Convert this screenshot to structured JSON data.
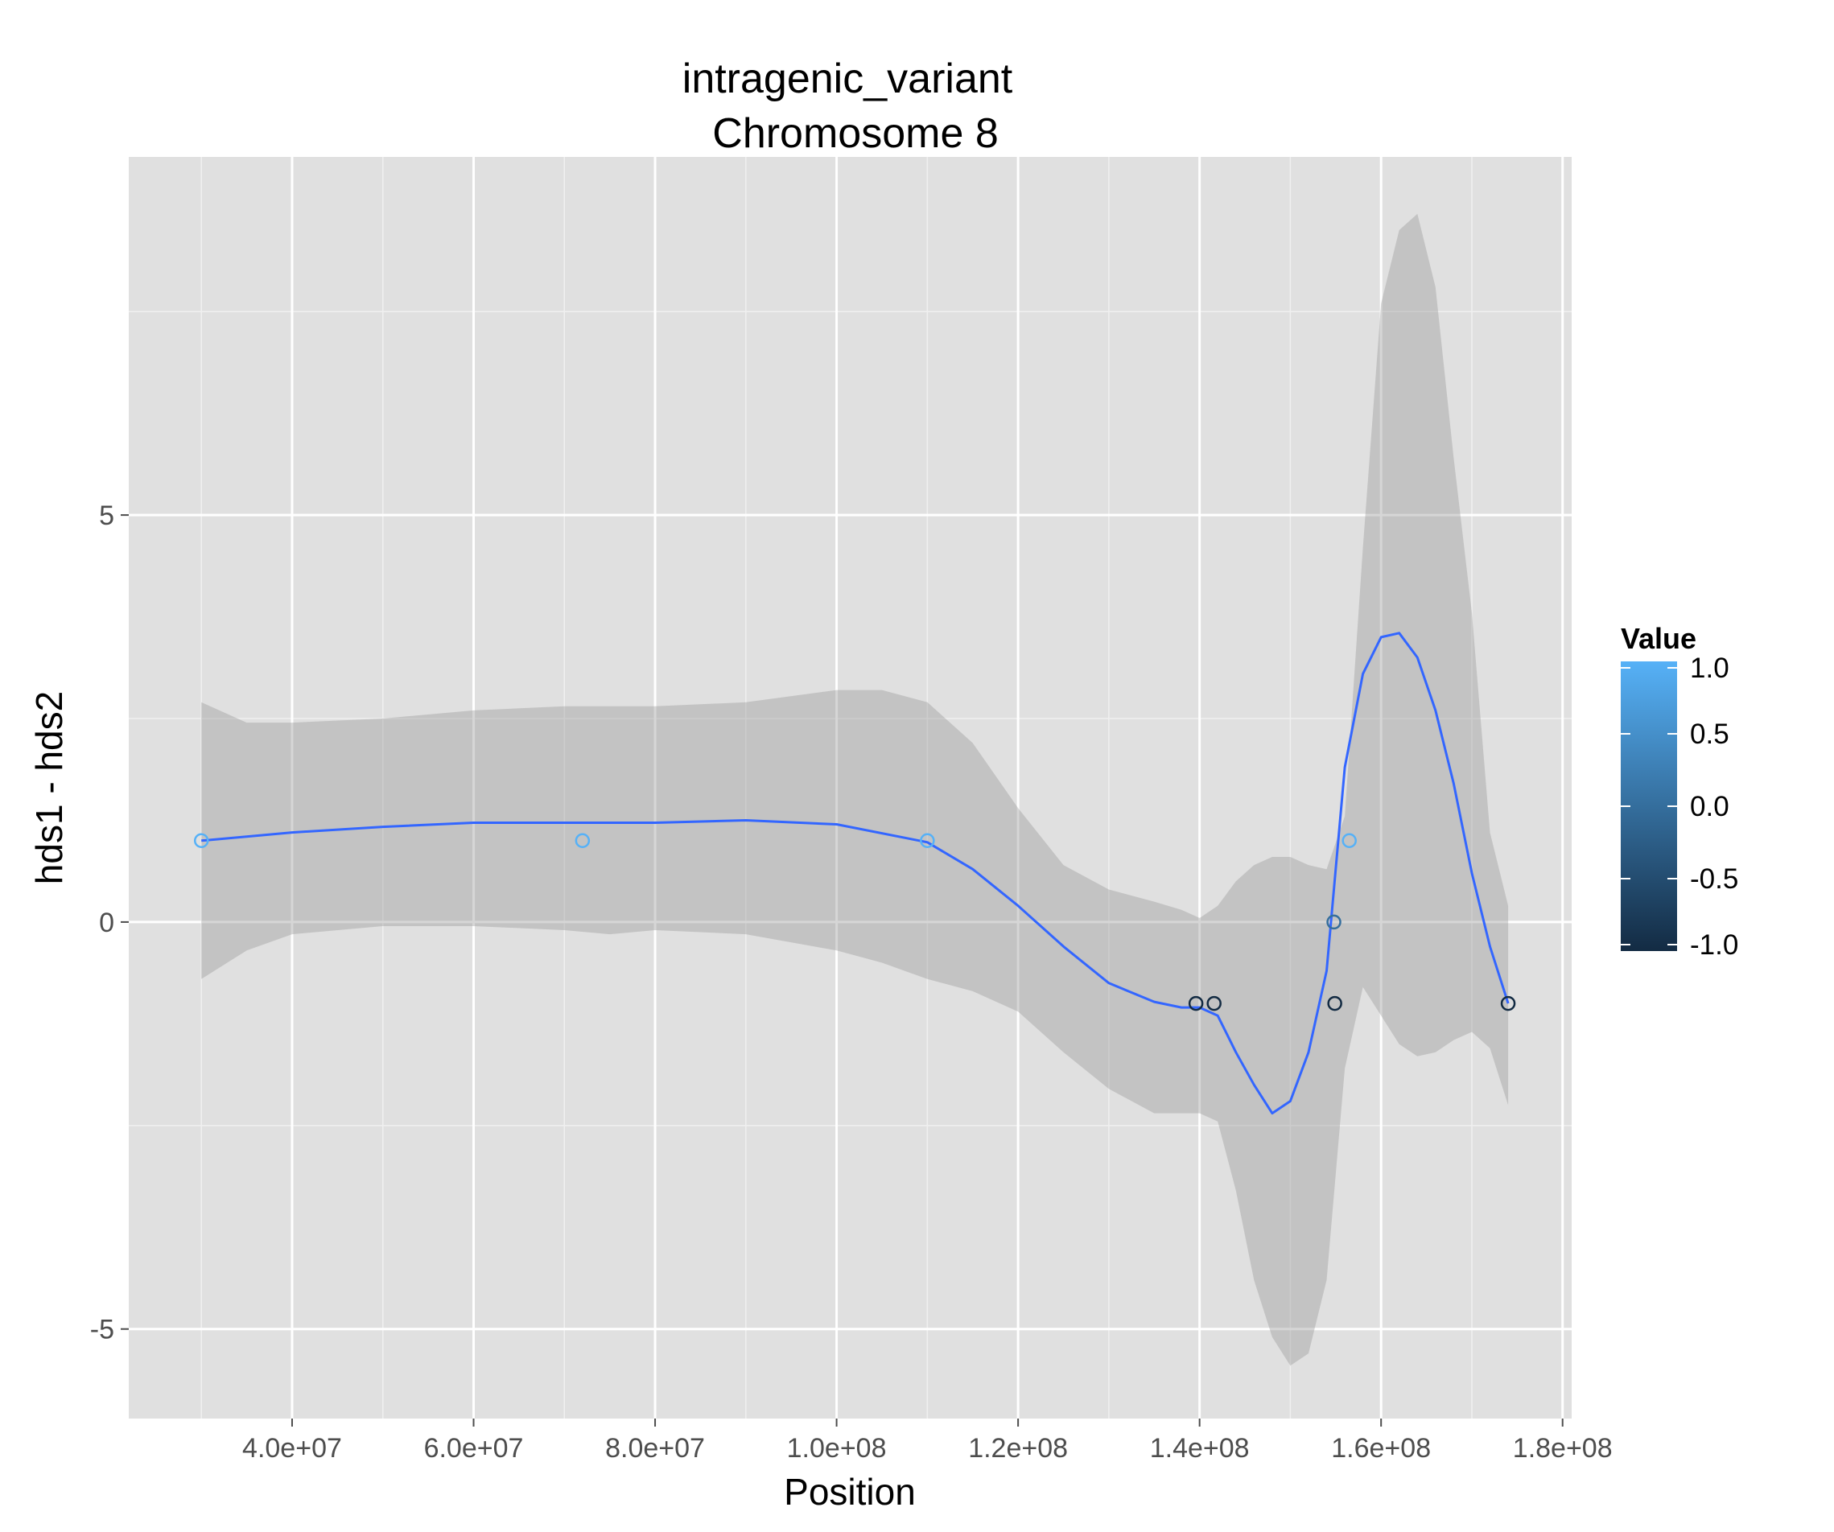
{
  "chart_data": {
    "type": "scatter",
    "title_line1": "intragenic_variant",
    "title_line2": "Chromosome 8",
    "xlabel": "Position",
    "ylabel": "hds1 - hds2",
    "xlim": [
      22000000,
      181000000
    ],
    "ylim": [
      -6.1,
      9.4
    ],
    "x_ticks": [
      40000000,
      60000000,
      80000000,
      100000000,
      120000000,
      140000000,
      160000000,
      180000000
    ],
    "x_tick_labels": [
      "4.0e+07",
      "6.0e+07",
      "8.0e+07",
      "1.0e+08",
      "1.2e+08",
      "1.4e+08",
      "1.6e+08",
      "1.8e+08"
    ],
    "y_ticks": [
      -5,
      0,
      5
    ],
    "y_tick_labels": [
      "-5",
      "0",
      "5"
    ],
    "grid": true,
    "legend": {
      "title": "Value",
      "position": "right",
      "type": "colorbar",
      "range": [
        -1,
        1
      ],
      "labels": [
        "1.0",
        "0.5",
        "0.0",
        "-0.5",
        "-1.0"
      ],
      "label_values": [
        1,
        0.5,
        0,
        -0.5,
        -1
      ],
      "color_low": "#132b43",
      "color_high": "#56b1f7"
    },
    "points": [
      {
        "x": 30000000,
        "y": 1,
        "value": 1
      },
      {
        "x": 72000000,
        "y": 1,
        "value": 1
      },
      {
        "x": 110000000,
        "y": 1,
        "value": 1
      },
      {
        "x": 139600000,
        "y": -1,
        "value": -1
      },
      {
        "x": 141600000,
        "y": -1,
        "value": -1
      },
      {
        "x": 154800000,
        "y": 0,
        "value": 0
      },
      {
        "x": 154900000,
        "y": -1,
        "value": -1
      },
      {
        "x": 156500000,
        "y": 1,
        "value": 1
      },
      {
        "x": 174000000,
        "y": -1,
        "value": -1
      }
    ],
    "smooth_line": {
      "color": "#3366ff",
      "x": [
        30000000,
        40000000,
        50000000,
        60000000,
        70000000,
        80000000,
        90000000,
        100000000,
        110000000,
        115000000,
        120000000,
        125000000,
        130000000,
        135000000,
        138000000,
        140000000,
        142000000,
        144000000,
        146000000,
        148000000,
        150000000,
        152000000,
        154000000,
        156000000,
        158000000,
        160000000,
        162000000,
        164000000,
        166000000,
        168000000,
        170000000,
        172000000,
        174000000
      ],
      "y": [
        1.0,
        1.1,
        1.17,
        1.22,
        1.22,
        1.22,
        1.25,
        1.2,
        0.98,
        0.65,
        0.2,
        -0.3,
        -0.75,
        -0.98,
        -1.05,
        -1.05,
        -1.15,
        -1.6,
        -2.0,
        -2.35,
        -2.2,
        -1.6,
        -0.6,
        1.9,
        3.05,
        3.5,
        3.55,
        3.25,
        2.6,
        1.7,
        0.6,
        -0.3,
        -1.0
      ]
    },
    "confidence_band": {
      "color": "#999999",
      "x": [
        30000000,
        35000000,
        40000000,
        50000000,
        60000000,
        70000000,
        75000000,
        80000000,
        90000000,
        100000000,
        105000000,
        110000000,
        115000000,
        120000000,
        125000000,
        130000000,
        135000000,
        138000000,
        140000000,
        142000000,
        144000000,
        146000000,
        148000000,
        150000000,
        152000000,
        154000000,
        156000000,
        158000000,
        160000000,
        162000000,
        164000000,
        166000000,
        168000000,
        170000000,
        172000000,
        174000000
      ],
      "upper": [
        2.7,
        2.45,
        2.45,
        2.5,
        2.6,
        2.65,
        2.65,
        2.65,
        2.7,
        2.85,
        2.85,
        2.7,
        2.2,
        1.4,
        0.7,
        0.4,
        0.25,
        0.15,
        0.05,
        0.2,
        0.5,
        0.7,
        0.8,
        0.8,
        0.7,
        0.65,
        1.3,
        4.6,
        7.6,
        8.5,
        8.7,
        7.8,
        5.7,
        3.8,
        1.1,
        0.2
      ],
      "lower": [
        -0.7,
        -0.35,
        -0.15,
        -0.05,
        -0.05,
        -0.1,
        -0.15,
        -0.1,
        -0.15,
        -0.35,
        -0.5,
        -0.7,
        -0.85,
        -1.1,
        -1.6,
        -2.05,
        -2.35,
        -2.35,
        -2.35,
        -2.45,
        -3.3,
        -4.4,
        -5.1,
        -5.45,
        -5.3,
        -4.4,
        -1.8,
        -0.8,
        -1.15,
        -1.5,
        -1.65,
        -1.6,
        -1.45,
        -1.35,
        -1.55,
        -2.25
      ]
    }
  }
}
